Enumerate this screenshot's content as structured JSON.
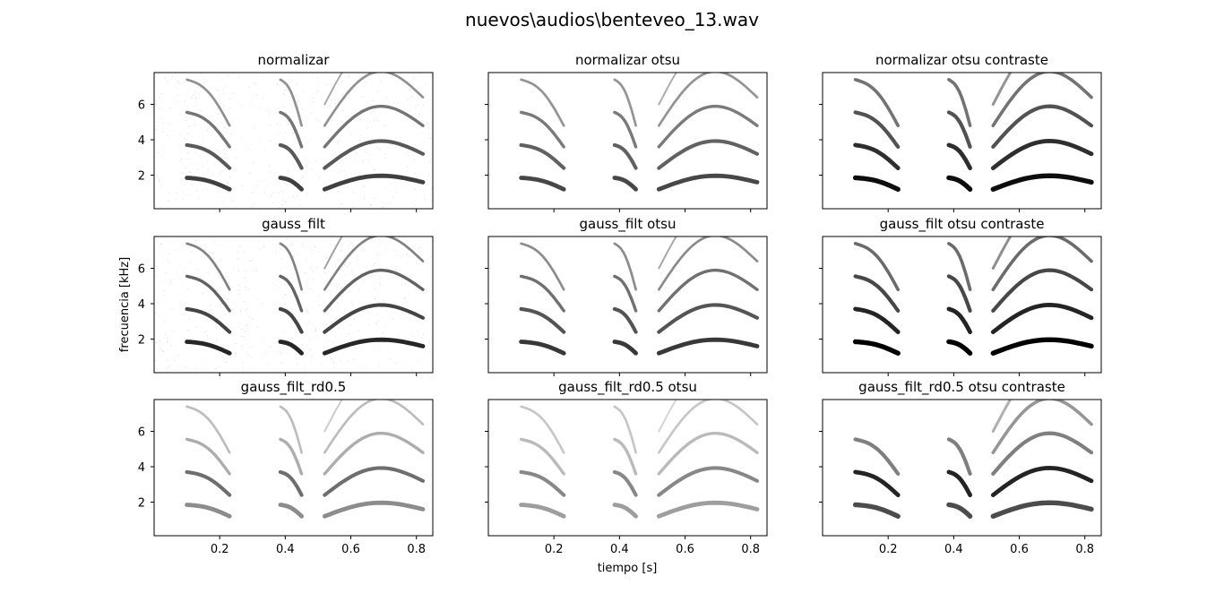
{
  "figure_title": "nuevos\\audios\\benteveo_13.wav",
  "chart_data": {
    "type": "heatmap",
    "layout": "3x3 grid of spectrograms, shared x and y axes",
    "colormap": "gray_r",
    "xlabel": "tiempo [s]",
    "ylabel": "frecuencia [kHz]",
    "xlim": [
      0.0,
      0.85
    ],
    "ylim": [
      0.1,
      7.8
    ],
    "x_ticks": [
      0.2,
      0.4,
      0.6,
      0.8
    ],
    "y_ticks": [
      2,
      4,
      6
    ],
    "x_tick_labels": [
      "0.2",
      "0.4",
      "0.6",
      "0.8"
    ],
    "y_tick_labels": [
      "2",
      "4",
      "6"
    ],
    "grid": false,
    "panels": [
      {
        "title": "normalizar",
        "style": "noisy",
        "intensity": 0.75
      },
      {
        "title": "normalizar otsu",
        "style": "binary",
        "intensity": 0.72
      },
      {
        "title": "normalizar otsu contraste",
        "style": "contrast",
        "intensity": 0.95
      },
      {
        "title": "gauss_filt",
        "style": "noisy",
        "intensity": 0.85
      },
      {
        "title": "gauss_filt otsu",
        "style": "binary",
        "intensity": 0.78
      },
      {
        "title": "gauss_filt otsu contraste",
        "style": "contrast",
        "intensity": 1.0
      },
      {
        "title": "gauss_filt_rd0.5",
        "style": "faint",
        "intensity": 0.6
      },
      {
        "title": "gauss_filt_rd0.5 otsu",
        "style": "faint",
        "intensity": 0.5
      },
      {
        "title": "gauss_filt_rd0.5 otsu contraste",
        "style": "contrast-sparse",
        "intensity": 1.0
      }
    ],
    "syllables": [
      {
        "t_start": 0.1,
        "t_end": 0.23,
        "f0_start_khz": 1.85,
        "f0_end_khz": 1.2,
        "harmonics": 4
      },
      {
        "t_start": 0.385,
        "t_end": 0.45,
        "f0_start_khz": 1.85,
        "f0_end_khz": 1.2,
        "harmonics": 4
      },
      {
        "t_start": 0.52,
        "t_end": 0.82,
        "f0_start_khz": 1.2,
        "f0_end_khz": 1.6,
        "harmonics": 5
      }
    ]
  }
}
